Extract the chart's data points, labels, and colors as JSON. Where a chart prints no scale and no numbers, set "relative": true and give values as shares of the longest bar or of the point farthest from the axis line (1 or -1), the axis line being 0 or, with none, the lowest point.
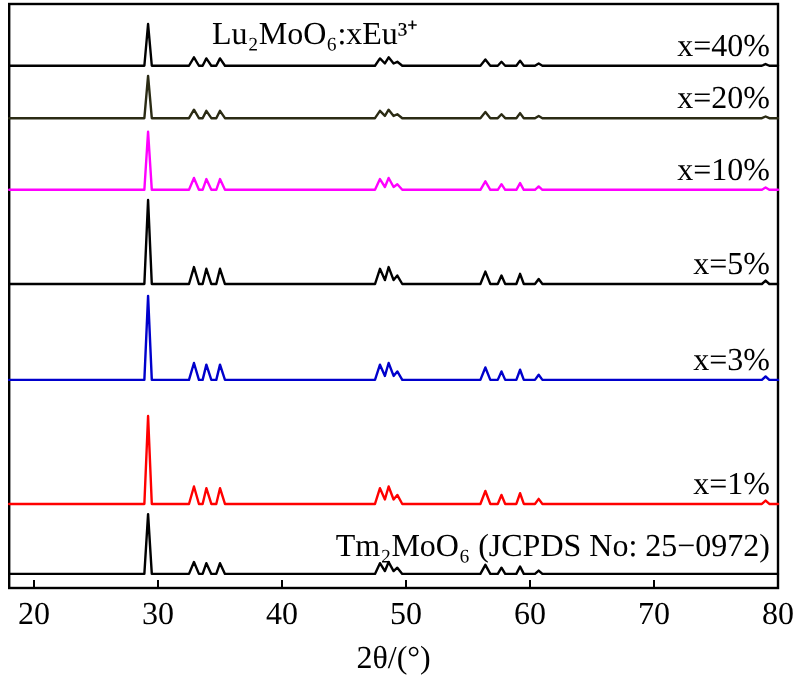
{
  "chart_data": {
    "type": "line",
    "relative": true,
    "title": "Lu₂MoO₆:xEu³⁺",
    "xlabel": "2θ/(°)",
    "xlim": [
      18,
      80
    ],
    "xticks": [
      20,
      30,
      40,
      50,
      60,
      70,
      80
    ],
    "x": [
      18,
      28.9,
      29.2,
      29.5,
      32.5,
      32.9,
      33.3,
      33.6,
      33.9,
      34.3,
      34.7,
      35.0,
      35.4,
      47.5,
      47.9,
      48.3,
      48.6,
      49.0,
      49.3,
      49.7,
      56.0,
      56.4,
      56.8,
      57.4,
      57.7,
      58.0,
      58.9,
      59.2,
      59.5,
      60.4,
      60.7,
      61.0,
      78.7,
      79.0,
      79.3,
      80
    ],
    "series": [
      {
        "name": "x=40%",
        "color": "#000000",
        "values": [
          0.926,
          0.926,
          1,
          0.926,
          0.926,
          0.941,
          0.926,
          0.926,
          0.939,
          0.926,
          0.926,
          0.939,
          0.926,
          0.926,
          0.939,
          0.93,
          0.941,
          0.93,
          0.933,
          0.926,
          0.926,
          0.937,
          0.926,
          0.926,
          0.933,
          0.926,
          0.926,
          0.935,
          0.926,
          0.926,
          0.93,
          0.926,
          0.926,
          0.929,
          0.926,
          0.926
        ]
      },
      {
        "name": "x=20%",
        "color": "#2b2b14",
        "values": [
          0.833,
          0.833,
          0.908,
          0.833,
          0.833,
          0.848,
          0.833,
          0.833,
          0.846,
          0.833,
          0.833,
          0.846,
          0.833,
          0.833,
          0.846,
          0.837,
          0.848,
          0.837,
          0.84,
          0.833,
          0.833,
          0.844,
          0.833,
          0.833,
          0.84,
          0.833,
          0.833,
          0.842,
          0.833,
          0.833,
          0.837,
          0.833,
          0.833,
          0.836,
          0.833,
          0.833
        ]
      },
      {
        "name": "x=10%",
        "color": "#ff00ff",
        "values": [
          0.706,
          0.706,
          0.809,
          0.706,
          0.706,
          0.727,
          0.706,
          0.706,
          0.725,
          0.706,
          0.706,
          0.725,
          0.706,
          0.706,
          0.725,
          0.711,
          0.727,
          0.711,
          0.716,
          0.706,
          0.706,
          0.721,
          0.706,
          0.706,
          0.716,
          0.706,
          0.706,
          0.718,
          0.706,
          0.706,
          0.712,
          0.706,
          0.706,
          0.71,
          0.706,
          0.706
        ]
      },
      {
        "name": "x=5%",
        "color": "#000000",
        "values": [
          0.539,
          0.539,
          0.688,
          0.539,
          0.539,
          0.569,
          0.539,
          0.539,
          0.566,
          0.539,
          0.539,
          0.566,
          0.539,
          0.539,
          0.566,
          0.546,
          0.569,
          0.546,
          0.554,
          0.539,
          0.539,
          0.561,
          0.539,
          0.539,
          0.554,
          0.539,
          0.539,
          0.557,
          0.539,
          0.539,
          0.548,
          0.539,
          0.539,
          0.545,
          0.539,
          0.539
        ]
      },
      {
        "name": "x=3%",
        "color": "#0000cc",
        "values": [
          0.369,
          0.369,
          0.518,
          0.369,
          0.369,
          0.399,
          0.369,
          0.369,
          0.396,
          0.369,
          0.369,
          0.396,
          0.369,
          0.369,
          0.396,
          0.376,
          0.399,
          0.376,
          0.384,
          0.369,
          0.369,
          0.391,
          0.369,
          0.369,
          0.384,
          0.369,
          0.369,
          0.387,
          0.369,
          0.369,
          0.378,
          0.369,
          0.369,
          0.375,
          0.369,
          0.369
        ]
      },
      {
        "name": "x=1%",
        "color": "#ff0000",
        "values": [
          0.149,
          0.149,
          0.305,
          0.149,
          0.149,
          0.18,
          0.149,
          0.149,
          0.177,
          0.149,
          0.149,
          0.177,
          0.149,
          0.149,
          0.177,
          0.157,
          0.18,
          0.157,
          0.165,
          0.149,
          0.149,
          0.172,
          0.149,
          0.149,
          0.165,
          0.149,
          0.149,
          0.168,
          0.149,
          0.149,
          0.158,
          0.149,
          0.149,
          0.155,
          0.149,
          0.149
        ]
      },
      {
        "name": "Tm₂MoO₆ (JCPDS No: 25−0972)",
        "color": "#000000",
        "values": [
          0.025,
          0.025,
          0.131,
          0.025,
          0.025,
          0.046,
          0.025,
          0.025,
          0.044,
          0.025,
          0.025,
          0.044,
          0.025,
          0.025,
          0.044,
          0.03,
          0.046,
          0.03,
          0.036,
          0.025,
          0.025,
          0.041,
          0.025,
          0.025,
          0.036,
          0.025,
          0.025,
          0.038,
          0.025,
          0.025,
          0.031,
          0.025,
          0.025,
          0.025,
          0.025,
          0.025
        ]
      }
    ]
  }
}
